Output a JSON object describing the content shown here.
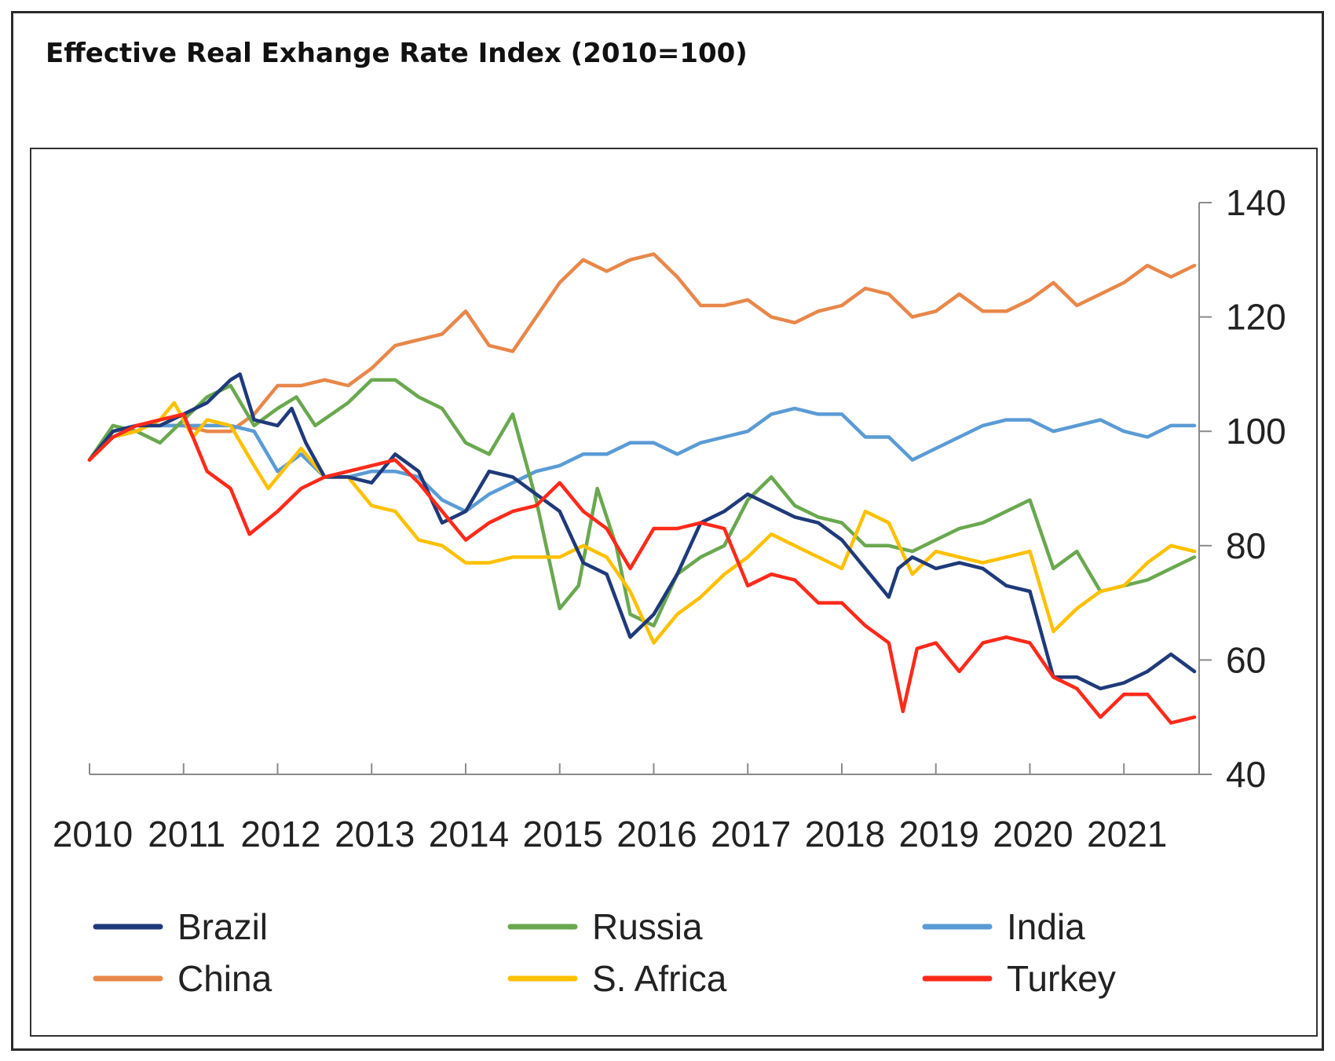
{
  "chart_data": {
    "type": "line",
    "title": "Effective Real Exhange Rate Index (2010=100)",
    "xlabel": "",
    "ylabel": "",
    "x_ticks": [
      "2010",
      "2011",
      "2012",
      "2013",
      "2014",
      "2015",
      "2016",
      "2017",
      "2018",
      "2019",
      "2020",
      "2021"
    ],
    "y_ticks": [
      40,
      60,
      80,
      100,
      120,
      140
    ],
    "ylim": [
      40,
      140
    ],
    "xlim": [
      2010.0,
      2021.8
    ],
    "y_axis_side": "right",
    "grid": false,
    "legend_position": "bottom",
    "series": [
      {
        "name": "Brazil",
        "color": "#1f3a7a",
        "points": [
          [
            2010.0,
            95
          ],
          [
            2010.25,
            100
          ],
          [
            2010.5,
            101
          ],
          [
            2010.75,
            101
          ],
          [
            2011.0,
            103
          ],
          [
            2011.25,
            105
          ],
          [
            2011.5,
            109
          ],
          [
            2011.6,
            110
          ],
          [
            2011.75,
            102
          ],
          [
            2012.0,
            101
          ],
          [
            2012.15,
            104
          ],
          [
            2012.3,
            98
          ],
          [
            2012.5,
            92
          ],
          [
            2012.75,
            92
          ],
          [
            2013.0,
            91
          ],
          [
            2013.25,
            96
          ],
          [
            2013.5,
            93
          ],
          [
            2013.75,
            84
          ],
          [
            2014.0,
            86
          ],
          [
            2014.25,
            93
          ],
          [
            2014.5,
            92
          ],
          [
            2014.75,
            89
          ],
          [
            2015.0,
            86
          ],
          [
            2015.25,
            77
          ],
          [
            2015.5,
            75
          ],
          [
            2015.75,
            64
          ],
          [
            2016.0,
            68
          ],
          [
            2016.25,
            75
          ],
          [
            2016.5,
            84
          ],
          [
            2016.75,
            86
          ],
          [
            2017.0,
            89
          ],
          [
            2017.25,
            87
          ],
          [
            2017.5,
            85
          ],
          [
            2017.75,
            84
          ],
          [
            2018.0,
            81
          ],
          [
            2018.25,
            76
          ],
          [
            2018.5,
            71
          ],
          [
            2018.6,
            76
          ],
          [
            2018.75,
            78
          ],
          [
            2019.0,
            76
          ],
          [
            2019.25,
            77
          ],
          [
            2019.5,
            76
          ],
          [
            2019.75,
            73
          ],
          [
            2020.0,
            72
          ],
          [
            2020.25,
            57
          ],
          [
            2020.5,
            57
          ],
          [
            2020.75,
            55
          ],
          [
            2021.0,
            56
          ],
          [
            2021.25,
            58
          ],
          [
            2021.5,
            61
          ],
          [
            2021.75,
            58
          ]
        ]
      },
      {
        "name": "Russia",
        "color": "#6aa84f",
        "points": [
          [
            2010.0,
            95
          ],
          [
            2010.25,
            101
          ],
          [
            2010.5,
            100
          ],
          [
            2010.75,
            98
          ],
          [
            2011.0,
            102
          ],
          [
            2011.25,
            106
          ],
          [
            2011.5,
            108
          ],
          [
            2011.75,
            101
          ],
          [
            2012.0,
            104
          ],
          [
            2012.2,
            106
          ],
          [
            2012.4,
            101
          ],
          [
            2012.75,
            105
          ],
          [
            2013.0,
            109
          ],
          [
            2013.25,
            109
          ],
          [
            2013.5,
            106
          ],
          [
            2013.75,
            104
          ],
          [
            2014.0,
            98
          ],
          [
            2014.25,
            96
          ],
          [
            2014.5,
            103
          ],
          [
            2014.75,
            88
          ],
          [
            2015.0,
            69
          ],
          [
            2015.2,
            73
          ],
          [
            2015.4,
            90
          ],
          [
            2015.6,
            80
          ],
          [
            2015.75,
            68
          ],
          [
            2016.0,
            66
          ],
          [
            2016.25,
            75
          ],
          [
            2016.5,
            78
          ],
          [
            2016.75,
            80
          ],
          [
            2017.0,
            88
          ],
          [
            2017.25,
            92
          ],
          [
            2017.5,
            87
          ],
          [
            2017.75,
            85
          ],
          [
            2018.0,
            84
          ],
          [
            2018.25,
            80
          ],
          [
            2018.5,
            80
          ],
          [
            2018.75,
            79
          ],
          [
            2019.0,
            81
          ],
          [
            2019.25,
            83
          ],
          [
            2019.5,
            84
          ],
          [
            2019.75,
            86
          ],
          [
            2020.0,
            88
          ],
          [
            2020.25,
            76
          ],
          [
            2020.5,
            79
          ],
          [
            2020.75,
            72
          ],
          [
            2021.0,
            73
          ],
          [
            2021.25,
            74
          ],
          [
            2021.5,
            76
          ],
          [
            2021.75,
            78
          ]
        ]
      },
      {
        "name": "India",
        "color": "#5b9bd5",
        "points": [
          [
            2010.0,
            95
          ],
          [
            2010.25,
            100
          ],
          [
            2010.5,
            101
          ],
          [
            2010.75,
            101
          ],
          [
            2011.0,
            101
          ],
          [
            2011.25,
            101
          ],
          [
            2011.5,
            101
          ],
          [
            2011.75,
            100
          ],
          [
            2012.0,
            93
          ],
          [
            2012.25,
            96
          ],
          [
            2012.5,
            92
          ],
          [
            2012.75,
            92
          ],
          [
            2013.0,
            93
          ],
          [
            2013.25,
            93
          ],
          [
            2013.5,
            92
          ],
          [
            2013.75,
            88
          ],
          [
            2014.0,
            86
          ],
          [
            2014.25,
            89
          ],
          [
            2014.5,
            91
          ],
          [
            2014.75,
            93
          ],
          [
            2015.0,
            94
          ],
          [
            2015.25,
            96
          ],
          [
            2015.5,
            96
          ],
          [
            2015.75,
            98
          ],
          [
            2016.0,
            98
          ],
          [
            2016.25,
            96
          ],
          [
            2016.5,
            98
          ],
          [
            2016.75,
            99
          ],
          [
            2017.0,
            100
          ],
          [
            2017.25,
            103
          ],
          [
            2017.5,
            104
          ],
          [
            2017.75,
            103
          ],
          [
            2018.0,
            103
          ],
          [
            2018.25,
            99
          ],
          [
            2018.5,
            99
          ],
          [
            2018.75,
            95
          ],
          [
            2019.0,
            97
          ],
          [
            2019.25,
            99
          ],
          [
            2019.5,
            101
          ],
          [
            2019.75,
            102
          ],
          [
            2020.0,
            102
          ],
          [
            2020.25,
            100
          ],
          [
            2020.5,
            101
          ],
          [
            2020.75,
            102
          ],
          [
            2021.0,
            100
          ],
          [
            2021.25,
            99
          ],
          [
            2021.5,
            101
          ],
          [
            2021.75,
            101
          ]
        ]
      },
      {
        "name": "China",
        "color": "#e8874a",
        "points": [
          [
            2010.0,
            95
          ],
          [
            2010.25,
            100
          ],
          [
            2010.5,
            101
          ],
          [
            2010.75,
            101
          ],
          [
            2011.0,
            101
          ],
          [
            2011.25,
            100
          ],
          [
            2011.5,
            100
          ],
          [
            2011.75,
            103
          ],
          [
            2012.0,
            108
          ],
          [
            2012.25,
            108
          ],
          [
            2012.5,
            109
          ],
          [
            2012.75,
            108
          ],
          [
            2013.0,
            111
          ],
          [
            2013.25,
            115
          ],
          [
            2013.5,
            116
          ],
          [
            2013.75,
            117
          ],
          [
            2014.0,
            121
          ],
          [
            2014.25,
            115
          ],
          [
            2014.5,
            114
          ],
          [
            2014.75,
            120
          ],
          [
            2015.0,
            126
          ],
          [
            2015.25,
            130
          ],
          [
            2015.5,
            128
          ],
          [
            2015.75,
            130
          ],
          [
            2016.0,
            131
          ],
          [
            2016.25,
            127
          ],
          [
            2016.5,
            122
          ],
          [
            2016.75,
            122
          ],
          [
            2017.0,
            123
          ],
          [
            2017.25,
            120
          ],
          [
            2017.5,
            119
          ],
          [
            2017.75,
            121
          ],
          [
            2018.0,
            122
          ],
          [
            2018.25,
            125
          ],
          [
            2018.5,
            124
          ],
          [
            2018.75,
            120
          ],
          [
            2019.0,
            121
          ],
          [
            2019.25,
            124
          ],
          [
            2019.5,
            121
          ],
          [
            2019.75,
            121
          ],
          [
            2020.0,
            123
          ],
          [
            2020.25,
            126
          ],
          [
            2020.5,
            122
          ],
          [
            2020.75,
            124
          ],
          [
            2021.0,
            126
          ],
          [
            2021.25,
            129
          ],
          [
            2021.5,
            127
          ],
          [
            2021.75,
            129
          ]
        ]
      },
      {
        "name": "S. Africa",
        "color": "#ffc000",
        "points": [
          [
            2010.0,
            95
          ],
          [
            2010.25,
            99
          ],
          [
            2010.5,
            100
          ],
          [
            2010.75,
            102
          ],
          [
            2010.9,
            105
          ],
          [
            2011.1,
            99
          ],
          [
            2011.25,
            102
          ],
          [
            2011.5,
            101
          ],
          [
            2011.75,
            94
          ],
          [
            2011.9,
            90
          ],
          [
            2012.0,
            92
          ],
          [
            2012.25,
            97
          ],
          [
            2012.5,
            92
          ],
          [
            2012.75,
            92
          ],
          [
            2013.0,
            87
          ],
          [
            2013.25,
            86
          ],
          [
            2013.5,
            81
          ],
          [
            2013.75,
            80
          ],
          [
            2014.0,
            77
          ],
          [
            2014.25,
            77
          ],
          [
            2014.5,
            78
          ],
          [
            2014.75,
            78
          ],
          [
            2015.0,
            78
          ],
          [
            2015.25,
            80
          ],
          [
            2015.5,
            78
          ],
          [
            2015.75,
            72
          ],
          [
            2016.0,
            63
          ],
          [
            2016.25,
            68
          ],
          [
            2016.5,
            71
          ],
          [
            2016.75,
            75
          ],
          [
            2017.0,
            78
          ],
          [
            2017.25,
            82
          ],
          [
            2017.5,
            80
          ],
          [
            2017.75,
            78
          ],
          [
            2018.0,
            76
          ],
          [
            2018.25,
            86
          ],
          [
            2018.5,
            84
          ],
          [
            2018.75,
            75
          ],
          [
            2019.0,
            79
          ],
          [
            2019.25,
            78
          ],
          [
            2019.5,
            77
          ],
          [
            2019.75,
            78
          ],
          [
            2020.0,
            79
          ],
          [
            2020.25,
            65
          ],
          [
            2020.5,
            69
          ],
          [
            2020.75,
            72
          ],
          [
            2021.0,
            73
          ],
          [
            2021.25,
            77
          ],
          [
            2021.5,
            80
          ],
          [
            2021.75,
            79
          ]
        ]
      },
      {
        "name": "Turkey",
        "color": "#ff2a1a",
        "points": [
          [
            2010.0,
            95
          ],
          [
            2010.25,
            99
          ],
          [
            2010.5,
            101
          ],
          [
            2010.75,
            102
          ],
          [
            2011.0,
            103
          ],
          [
            2011.25,
            93
          ],
          [
            2011.5,
            90
          ],
          [
            2011.7,
            82
          ],
          [
            2012.0,
            86
          ],
          [
            2012.25,
            90
          ],
          [
            2012.5,
            92
          ],
          [
            2012.75,
            93
          ],
          [
            2013.0,
            94
          ],
          [
            2013.25,
            95
          ],
          [
            2013.5,
            91
          ],
          [
            2013.75,
            86
          ],
          [
            2014.0,
            81
          ],
          [
            2014.25,
            84
          ],
          [
            2014.5,
            86
          ],
          [
            2014.75,
            87
          ],
          [
            2015.0,
            91
          ],
          [
            2015.25,
            86
          ],
          [
            2015.5,
            83
          ],
          [
            2015.75,
            76
          ],
          [
            2016.0,
            83
          ],
          [
            2016.25,
            83
          ],
          [
            2016.5,
            84
          ],
          [
            2016.75,
            83
          ],
          [
            2017.0,
            73
          ],
          [
            2017.25,
            75
          ],
          [
            2017.5,
            74
          ],
          [
            2017.75,
            70
          ],
          [
            2018.0,
            70
          ],
          [
            2018.25,
            66
          ],
          [
            2018.5,
            63
          ],
          [
            2018.65,
            51
          ],
          [
            2018.8,
            62
          ],
          [
            2019.0,
            63
          ],
          [
            2019.25,
            58
          ],
          [
            2019.5,
            63
          ],
          [
            2019.75,
            64
          ],
          [
            2020.0,
            63
          ],
          [
            2020.25,
            57
          ],
          [
            2020.5,
            55
          ],
          [
            2020.75,
            50
          ],
          [
            2021.0,
            54
          ],
          [
            2021.25,
            54
          ],
          [
            2021.5,
            49
          ],
          [
            2021.75,
            50
          ]
        ]
      }
    ]
  }
}
